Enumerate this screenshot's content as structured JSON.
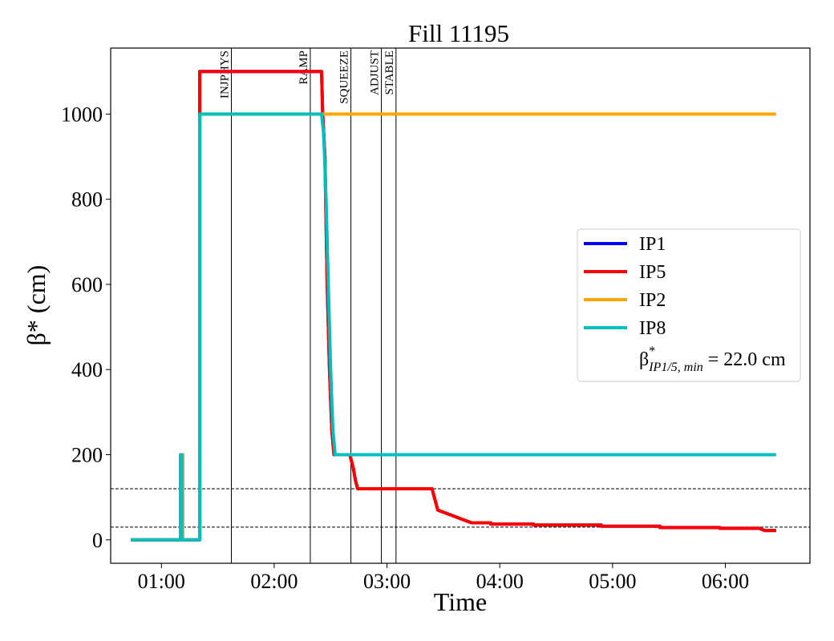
{
  "chart_data": {
    "type": "line",
    "title": "Fill 11195",
    "xlabel": "Time",
    "ylabel": "β* (cm)",
    "xlim": [
      0.55,
      6.75
    ],
    "ylim": [
      -55,
      1155
    ],
    "x_ticks": [
      {
        "value": 1,
        "label": "01:00"
      },
      {
        "value": 2,
        "label": "02:00"
      },
      {
        "value": 3,
        "label": "03:00"
      },
      {
        "value": 4,
        "label": "04:00"
      },
      {
        "value": 5,
        "label": "05:00"
      },
      {
        "value": 6,
        "label": "06:00"
      }
    ],
    "y_ticks": [
      0,
      200,
      400,
      600,
      800,
      1000
    ],
    "grid": false,
    "legend_position": "center-right",
    "phases": [
      {
        "label": "INJPHYS",
        "x": 1.62
      },
      {
        "label": "RAMP",
        "x": 2.32
      },
      {
        "label": "SQUEEZE",
        "x": 2.68
      },
      {
        "label": "ADJUST",
        "x": 2.95
      },
      {
        "label": "STABLE",
        "x": 3.08
      }
    ],
    "reference_lines": [
      120,
      30
    ],
    "series": [
      {
        "name": "IP1",
        "color": "#0000ff",
        "points": [
          [
            0.73,
            0
          ],
          [
            1.17,
            0
          ],
          [
            1.17,
            200
          ],
          [
            1.19,
            200
          ],
          [
            1.19,
            0
          ],
          [
            1.34,
            0
          ],
          [
            1.34,
            1100
          ],
          [
            2.42,
            1100
          ],
          [
            2.43,
            1000
          ],
          [
            2.45,
            900
          ],
          [
            2.47,
            600
          ],
          [
            2.49,
            400
          ],
          [
            2.51,
            260
          ],
          [
            2.53,
            200
          ],
          [
            2.67,
            200
          ],
          [
            2.7,
            170
          ],
          [
            2.72,
            140
          ],
          [
            2.74,
            120
          ],
          [
            3.18,
            120
          ],
          [
            3.4,
            120
          ],
          [
            3.45,
            70
          ],
          [
            3.55,
            60
          ],
          [
            3.7,
            45
          ],
          [
            3.75,
            40
          ],
          [
            3.92,
            40
          ],
          [
            3.92,
            37
          ],
          [
            4.3,
            37
          ],
          [
            4.3,
            35
          ],
          [
            4.9,
            35
          ],
          [
            4.9,
            32
          ],
          [
            5.42,
            32
          ],
          [
            5.42,
            29
          ],
          [
            5.95,
            29
          ],
          [
            5.95,
            27
          ],
          [
            6.3,
            27
          ],
          [
            6.35,
            22
          ],
          [
            6.45,
            22
          ]
        ]
      },
      {
        "name": "IP5",
        "color": "#ff0000",
        "points": [
          [
            0.73,
            0
          ],
          [
            1.17,
            0
          ],
          [
            1.17,
            200
          ],
          [
            1.19,
            200
          ],
          [
            1.19,
            0
          ],
          [
            1.34,
            0
          ],
          [
            1.34,
            1100
          ],
          [
            2.42,
            1100
          ],
          [
            2.43,
            1000
          ],
          [
            2.45,
            900
          ],
          [
            2.47,
            600
          ],
          [
            2.49,
            400
          ],
          [
            2.51,
            260
          ],
          [
            2.53,
            200
          ],
          [
            2.67,
            200
          ],
          [
            2.7,
            170
          ],
          [
            2.72,
            140
          ],
          [
            2.74,
            120
          ],
          [
            3.18,
            120
          ],
          [
            3.4,
            120
          ],
          [
            3.45,
            70
          ],
          [
            3.55,
            60
          ],
          [
            3.7,
            45
          ],
          [
            3.75,
            40
          ],
          [
            3.92,
            40
          ],
          [
            3.92,
            37
          ],
          [
            4.3,
            37
          ],
          [
            4.3,
            35
          ],
          [
            4.9,
            35
          ],
          [
            4.9,
            32
          ],
          [
            5.42,
            32
          ],
          [
            5.42,
            29
          ],
          [
            5.95,
            29
          ],
          [
            5.95,
            27
          ],
          [
            6.3,
            27
          ],
          [
            6.35,
            22
          ],
          [
            6.45,
            22
          ]
        ]
      },
      {
        "name": "IP2",
        "color": "#ffa500",
        "points": [
          [
            0.73,
            0
          ],
          [
            1.17,
            0
          ],
          [
            1.17,
            200
          ],
          [
            1.19,
            200
          ],
          [
            1.19,
            0
          ],
          [
            1.34,
            0
          ],
          [
            1.34,
            1000
          ],
          [
            6.45,
            1000
          ]
        ]
      },
      {
        "name": "IP8",
        "color": "#00bfbf",
        "points": [
          [
            0.73,
            0
          ],
          [
            1.17,
            0
          ],
          [
            1.17,
            200
          ],
          [
            1.18,
            200
          ],
          [
            1.18,
            0
          ],
          [
            1.34,
            0
          ],
          [
            1.34,
            1000
          ],
          [
            2.42,
            1000
          ],
          [
            2.44,
            950
          ],
          [
            2.46,
            800
          ],
          [
            2.48,
            600
          ],
          [
            2.5,
            400
          ],
          [
            2.52,
            260
          ],
          [
            2.54,
            200
          ],
          [
            6.45,
            200
          ]
        ]
      }
    ],
    "legend_note": {
      "symbol": "β",
      "superscript": "*",
      "subscript": "IP1/5, min",
      "text": " = 22.0 cm"
    }
  }
}
